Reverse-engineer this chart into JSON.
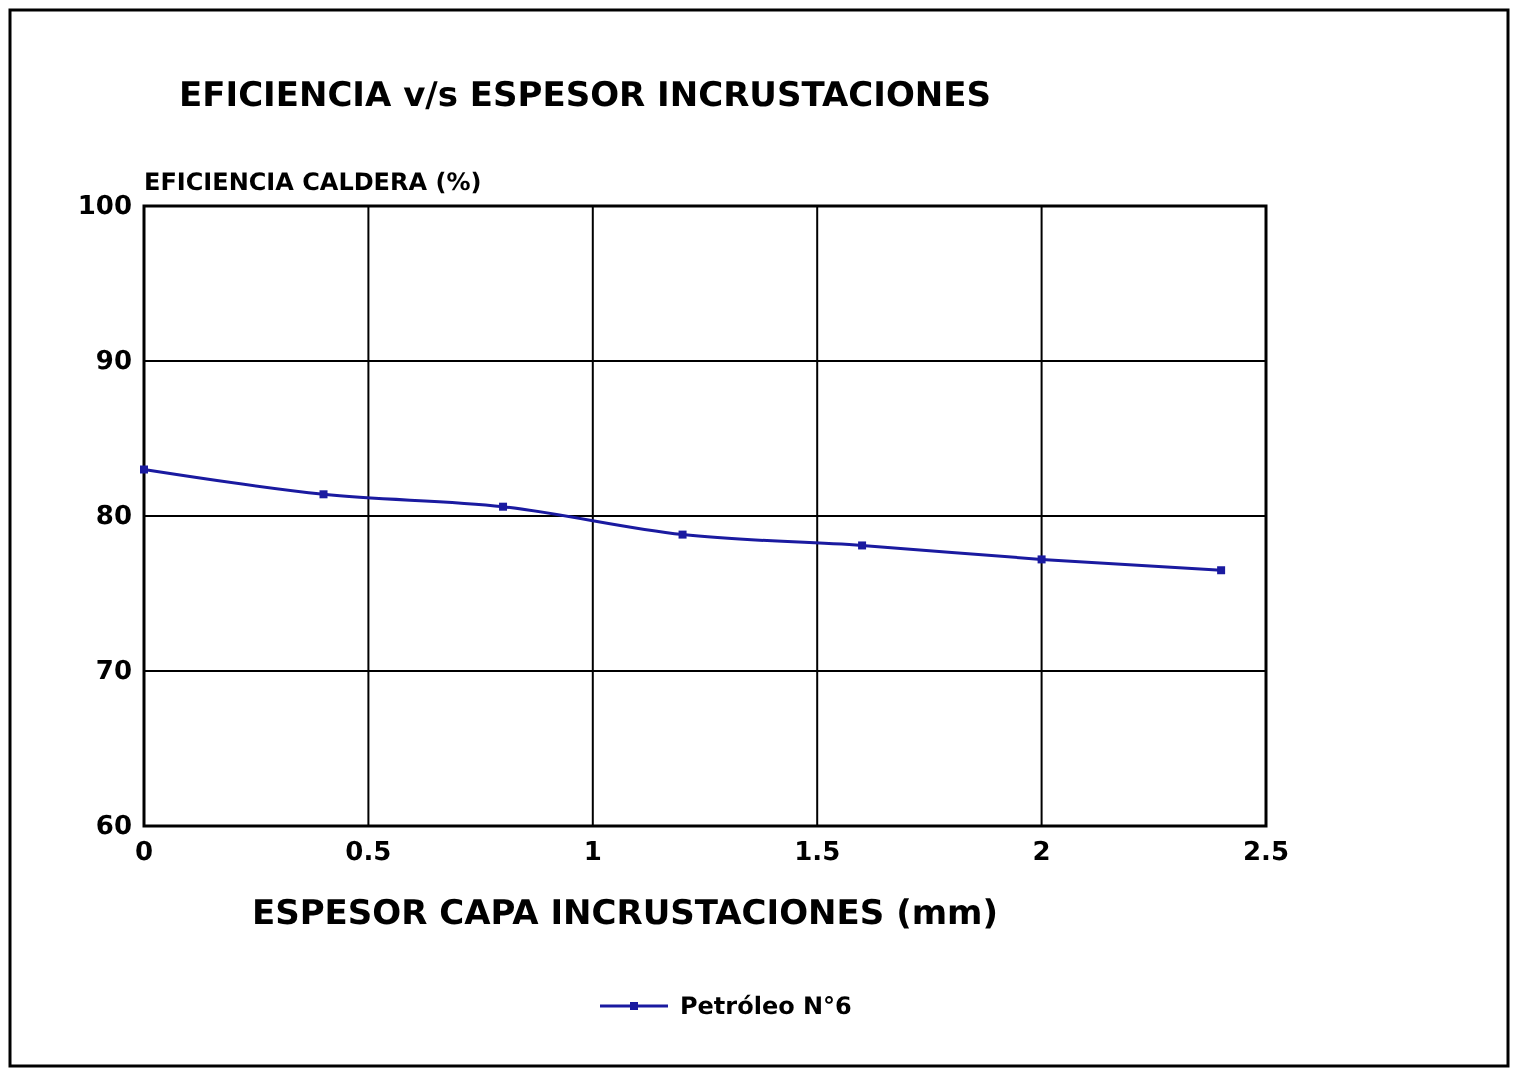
{
  "chart_data": {
    "type": "line",
    "title": "EFICIENCIA v/s ESPESOR INCRUSTACIONES",
    "xlabel": "ESPESOR CAPA INCRUSTACIONES (mm)",
    "ylabel": "EFICIENCIA CALDERA (%)",
    "x": [
      0,
      0.4,
      0.8,
      1.2,
      1.6,
      2,
      2.4
    ],
    "series": [
      {
        "name": "Petróleo N°6",
        "color": "#1a1aa0",
        "values": [
          83,
          81.4,
          80.6,
          78.8,
          78.1,
          77.2,
          76.5
        ]
      }
    ],
    "xlim": [
      0,
      2.5
    ],
    "xticks": [
      0,
      0.5,
      1,
      1.5,
      2,
      2.5
    ],
    "ylim": [
      60,
      100
    ],
    "yticks": [
      60,
      70,
      80,
      90,
      100
    ],
    "grid": true,
    "legend": "bottom",
    "marker": "square",
    "line_style": "solid"
  }
}
